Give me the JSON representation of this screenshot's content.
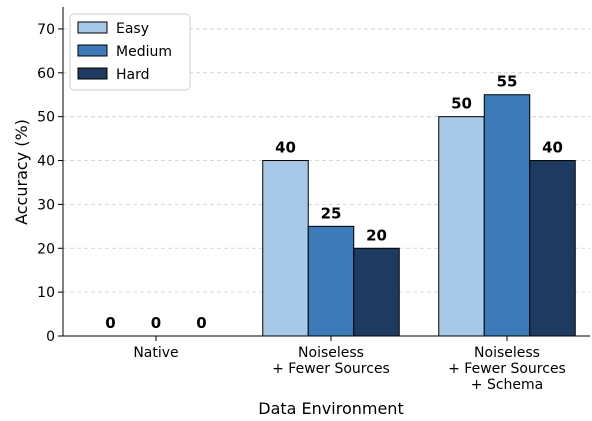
{
  "chart_data": {
    "type": "bar",
    "xlabel": "Data Environment",
    "ylabel": "Accuracy (%)",
    "ylim": [
      0,
      75
    ],
    "yticks": [
      0,
      10,
      20,
      30,
      40,
      50,
      60,
      70
    ],
    "grid": "horizontal dashed",
    "legend_position": "top-left",
    "categories": [
      [
        "Native"
      ],
      [
        "Noiseless",
        "+ Fewer Sources"
      ],
      [
        "Noiseless",
        "+ Fewer Sources",
        "+ Schema"
      ]
    ],
    "series": [
      {
        "name": "Easy",
        "color": "#a8c8e8",
        "values": [
          0,
          40,
          50
        ]
      },
      {
        "name": "Medium",
        "color": "#3c7ab8",
        "values": [
          0,
          25,
          55
        ]
      },
      {
        "name": "Hard",
        "color": "#1f3a60",
        "values": [
          0,
          20,
          40
        ]
      }
    ]
  }
}
